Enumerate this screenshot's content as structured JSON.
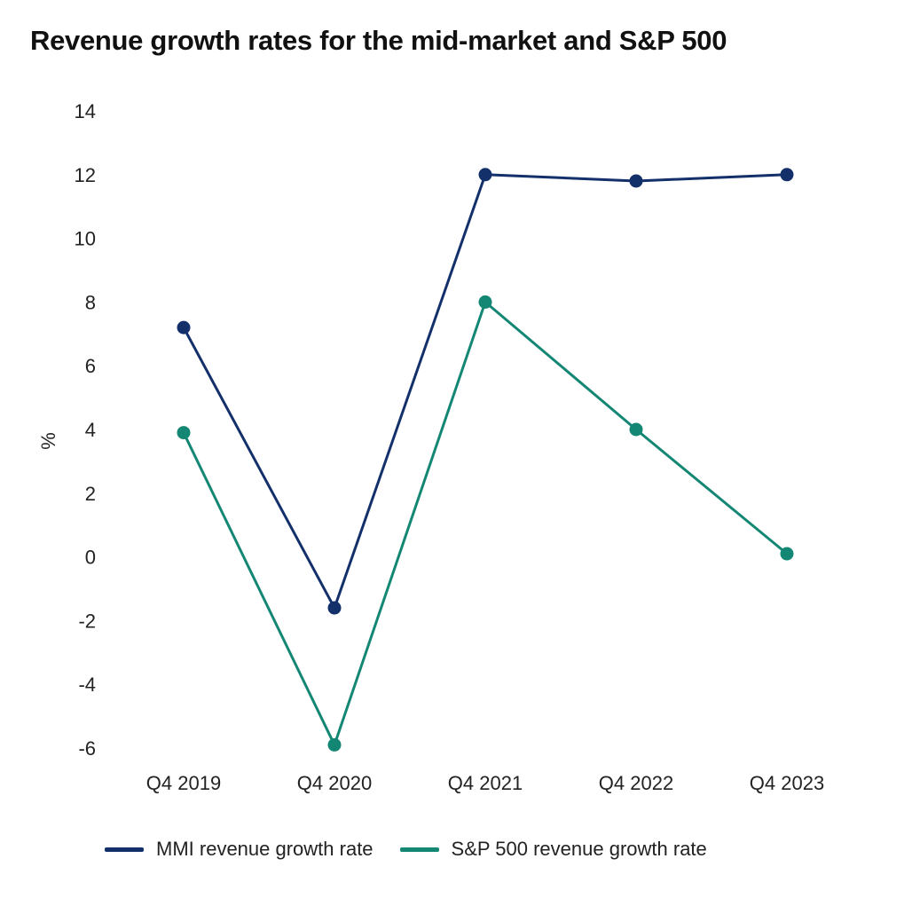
{
  "chart_data": {
    "type": "line",
    "title": "Revenue growth rates for the mid-market and S&P 500",
    "ylabel": "%",
    "xlabel": "",
    "categories": [
      "Q4 2019",
      "Q4 2020",
      "Q4 2021",
      "Q4 2022",
      "Q4 2023"
    ],
    "yticks": [
      "14",
      "12",
      "10",
      "8",
      "6",
      "4",
      "2",
      "0",
      "-2",
      "-4",
      "-6"
    ],
    "ylim": [
      -6,
      14
    ],
    "grid": false,
    "legend_position": "bottom",
    "series": [
      {
        "name": "MMI revenue growth rate",
        "color": "#13306b",
        "values": [
          7.2,
          -1.6,
          12.0,
          11.8,
          12.0
        ]
      },
      {
        "name": "S&P 500 revenue growth rate",
        "color": "#148774",
        "values": [
          3.9,
          -5.9,
          8.0,
          4.0,
          0.1
        ]
      }
    ]
  }
}
